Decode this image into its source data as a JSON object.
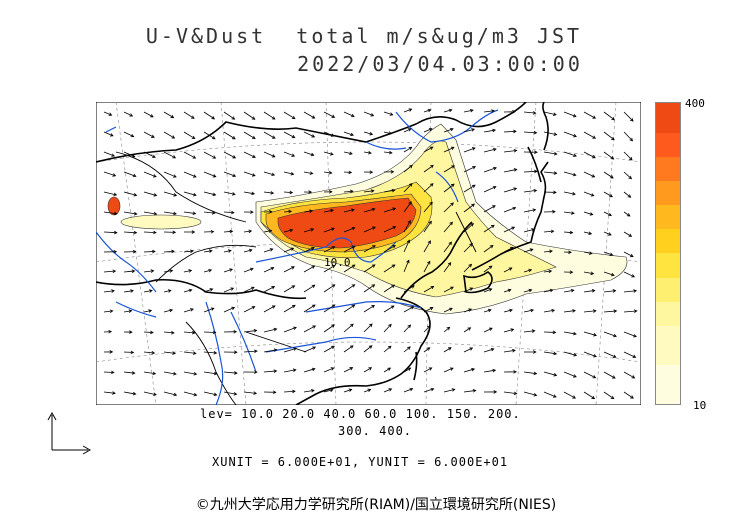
{
  "title": {
    "line1": "U-V&Dust  total m/s&ug/m3 JST",
    "line2": "2022/03/04.03:00:00"
  },
  "map": {
    "region": "East Asia",
    "contour_label": "10.0"
  },
  "colorbar": {
    "max_label": "400",
    "min_label": "10",
    "levels": [
      10,
      20,
      40,
      60,
      100,
      150,
      200,
      300,
      400
    ],
    "colors": [
      "#fffde0",
      "#fffbc0",
      "#fff7a0",
      "#ffef70",
      "#ffe440",
      "#ffd11e",
      "#ffb81e",
      "#ff9a1e",
      "#ff7a1e",
      "#ff5a1e",
      "#f04a14"
    ]
  },
  "levels_text": {
    "line1": "lev= 10.0 20.0 40.0 60.0 100. 150. 200.",
    "line2": "300. 400."
  },
  "units_text": "XUNIT = 6.000E+01, YUNIT = 6.000E+01",
  "copyright": "©九州大学応用力学研究所(RIAM)/国立環境研究所(NIES)"
}
